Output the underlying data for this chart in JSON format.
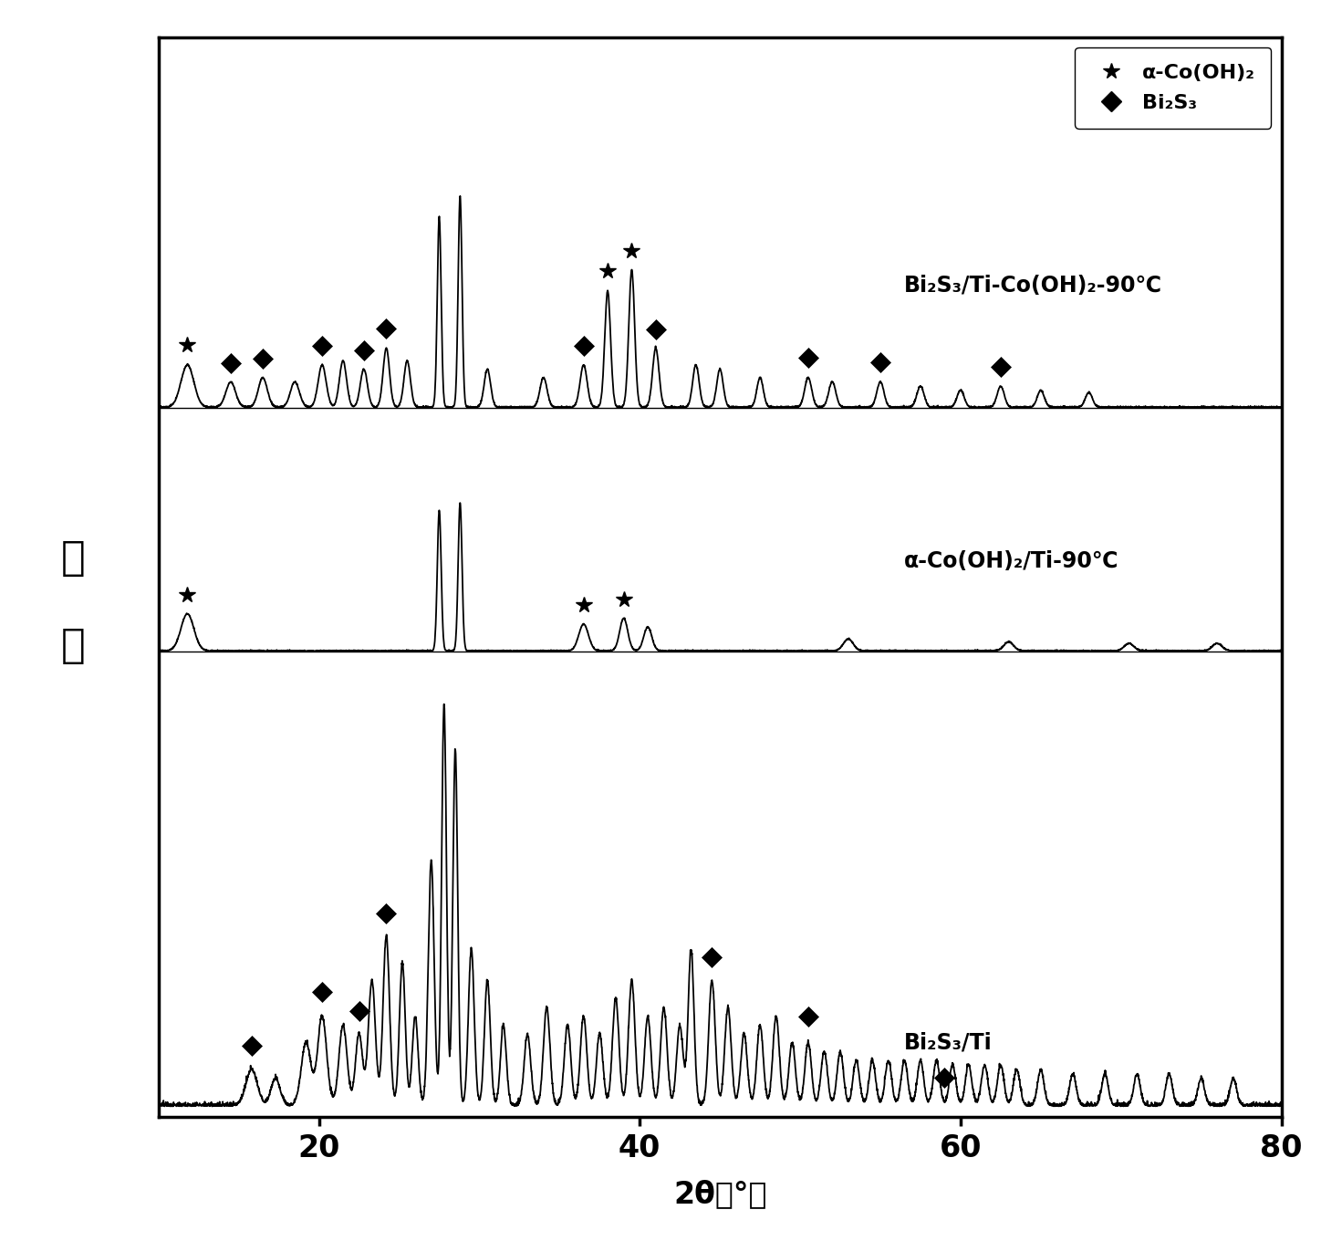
{
  "xlim": [
    10,
    80
  ],
  "xlabel": "2θ（°）",
  "ylabel": "强度",
  "xticks": [
    20,
    40,
    60,
    80
  ],
  "legend_label_star": "α-Co(OH)₂",
  "legend_label_dia": "Bi₂S₃",
  "curve_labels": [
    "Bi₂S₃/Ti-Co(OH)₂-90℃",
    "α-Co(OH)₂/Ti-90℃",
    "Bi₂S₃/Ti"
  ],
  "background_color": "#ffffff",
  "line_color": "#000000",
  "figsize": [
    14.48,
    13.6
  ],
  "dpi": 100
}
